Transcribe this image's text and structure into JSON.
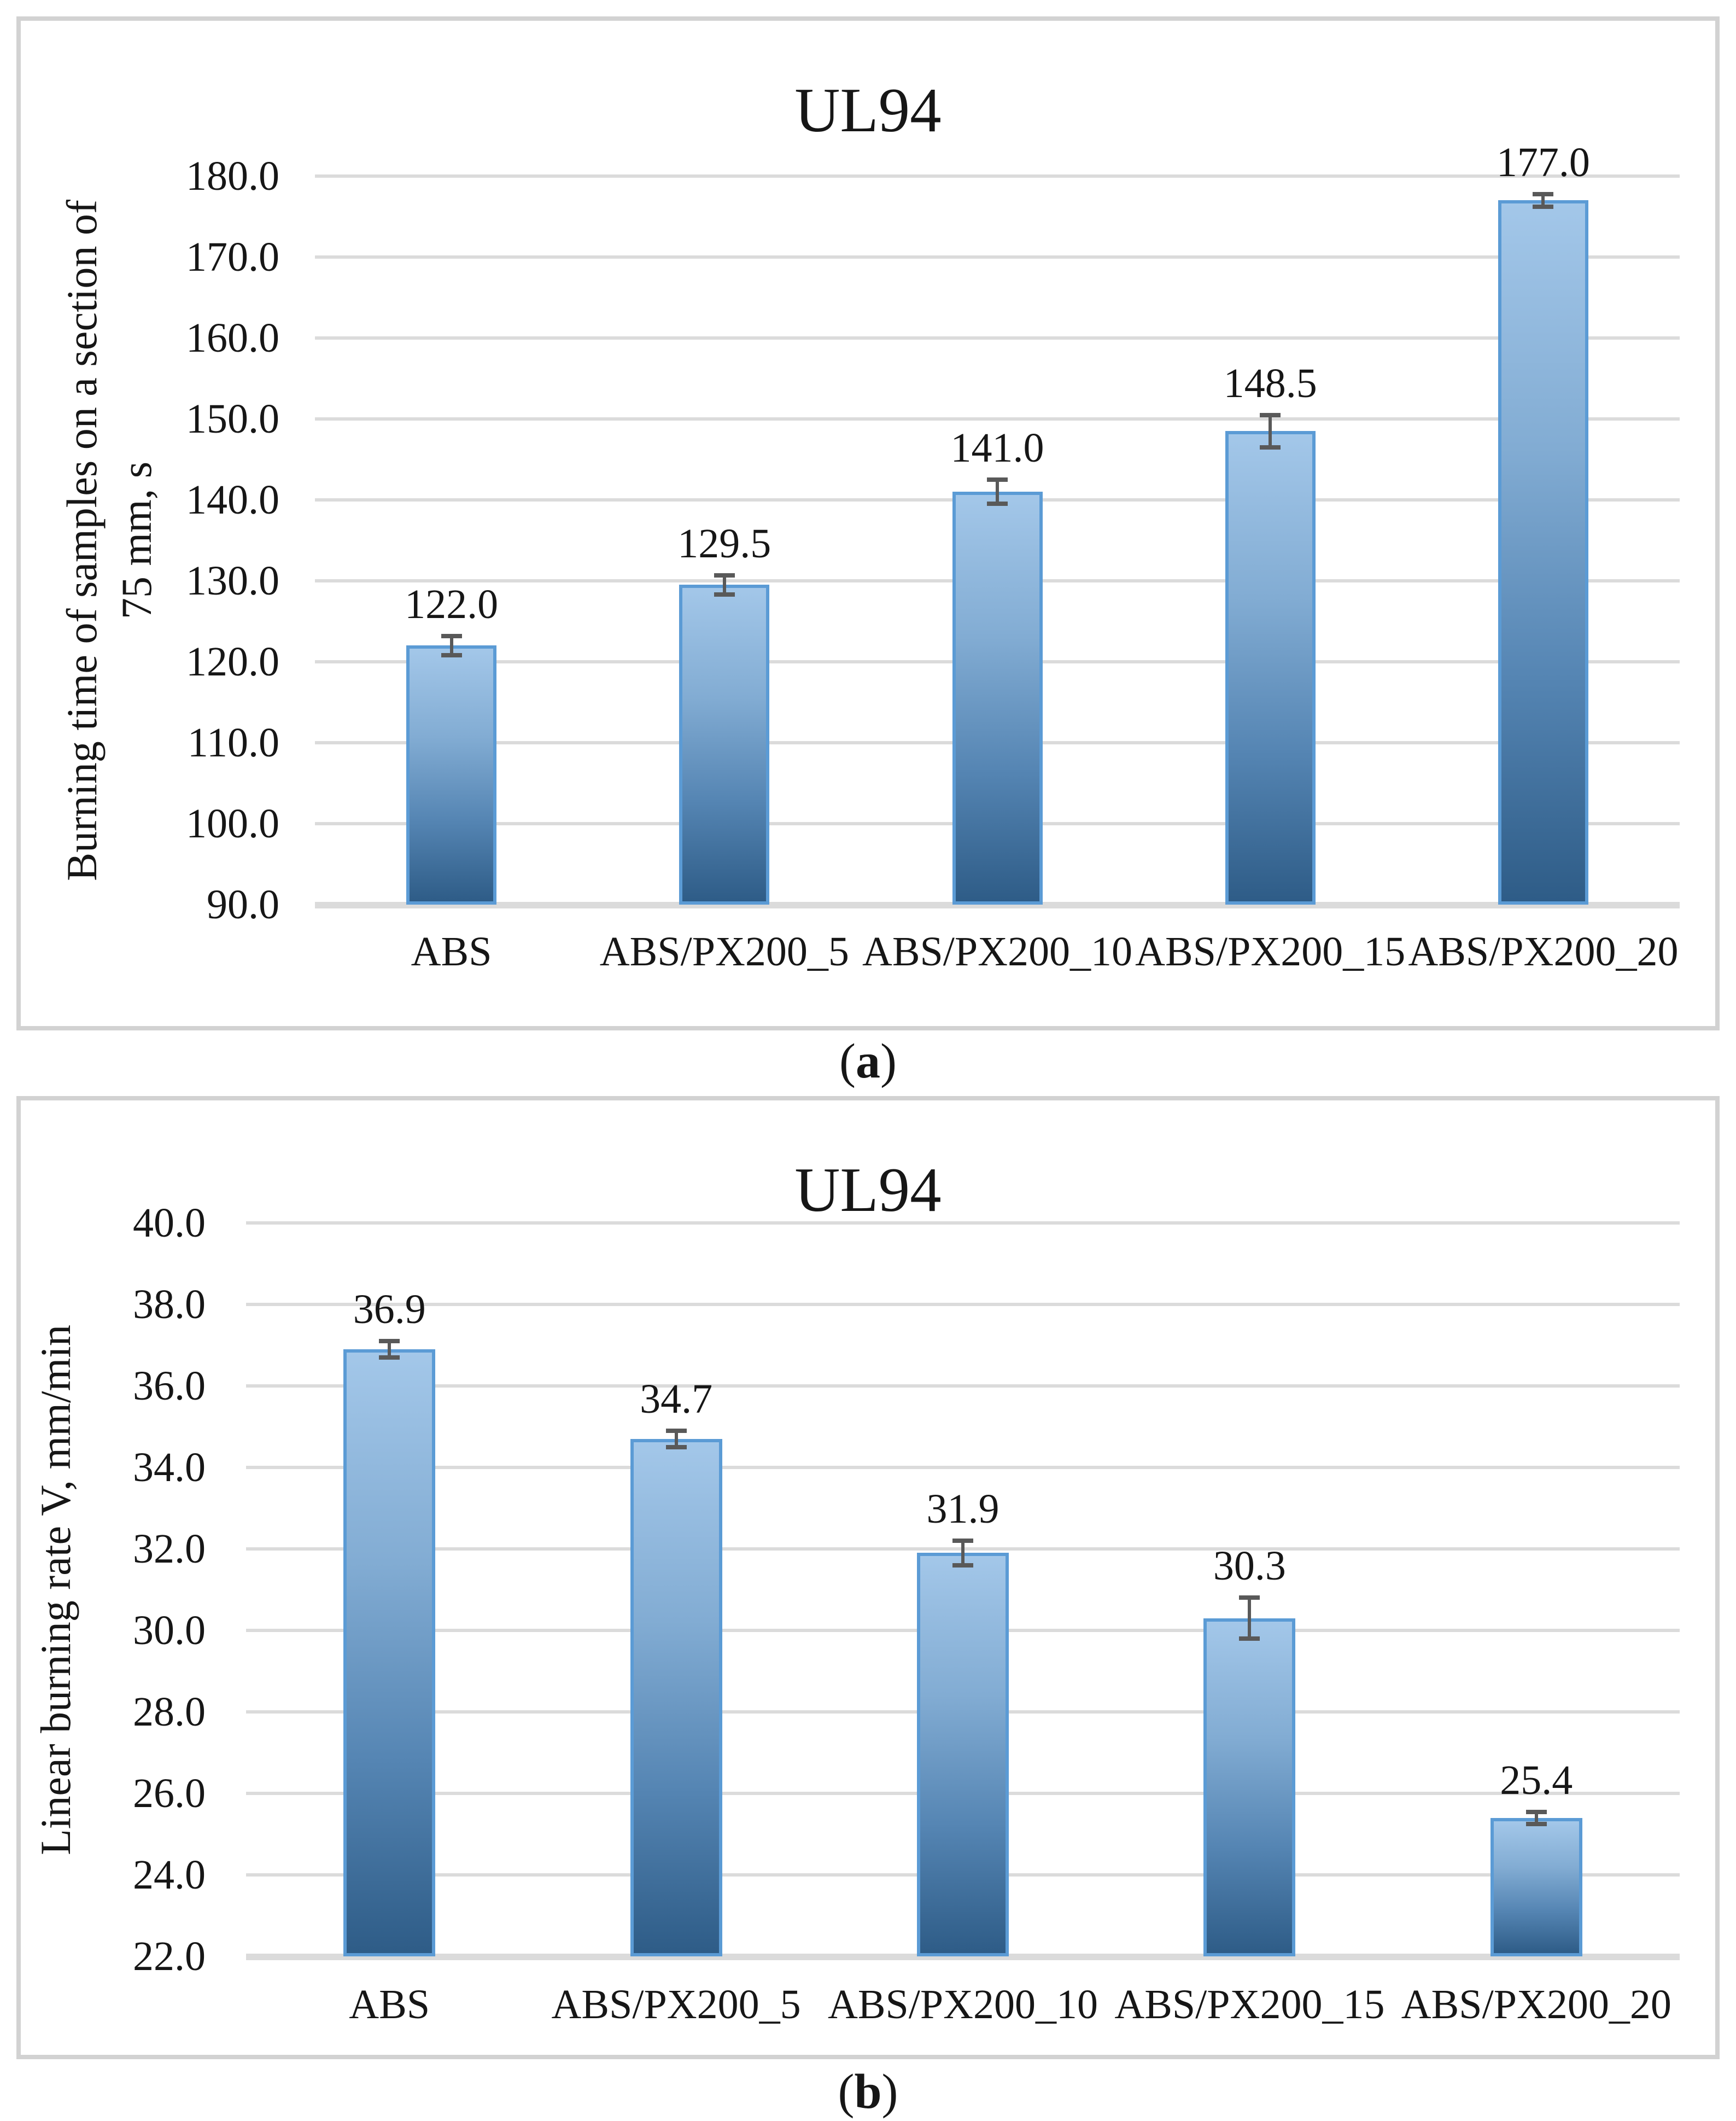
{
  "figure": {
    "captions": {
      "a": {
        "open": "(",
        "letter": "a",
        "close": ")"
      },
      "b": {
        "open": "(",
        "letter": "b",
        "close": ")"
      }
    },
    "colors": {
      "text": "#161616",
      "gridline": "#DBDBDB",
      "axis_line": "#DBDBDB",
      "panel_border": "#D2D2D2",
      "bar_border": "#5B9BD5",
      "bar_fill_top": "#A3C7E9",
      "bar_fill_mid1": "#82ACD3",
      "bar_fill_mid2": "#5585B3",
      "bar_fill_bottom": "#2E5C87",
      "error_bar": "#595959"
    }
  },
  "chart_data": [
    {
      "id": "a",
      "type": "bar",
      "title": "UL94",
      "ylabel": "Burning time of samples on a section of\n75 mm, s",
      "xlabel": "",
      "categories": [
        "ABS",
        "ABS/PX200_5",
        "ABS/PX200_10",
        "ABS/PX200_15",
        "ABS/PX200_20"
      ],
      "values": [
        122.0,
        129.5,
        141.0,
        148.5,
        177.0
      ],
      "value_labels": [
        "122.0",
        "129.5",
        "141.0",
        "148.5",
        "177.0"
      ],
      "errors": [
        1.2,
        1.2,
        1.5,
        2.0,
        0.8
      ],
      "ylim": [
        90,
        180
      ],
      "ystep": 10,
      "yticks": [
        "90.0",
        "100.0",
        "110.0",
        "120.0",
        "130.0",
        "140.0",
        "150.0",
        "160.0",
        "170.0",
        "180.0"
      ],
      "grid": true,
      "legend_position": "none"
    },
    {
      "id": "b",
      "type": "bar",
      "title": "UL94",
      "ylabel": "Linear burning rate V, mm/min",
      "xlabel": "",
      "categories": [
        "ABS",
        "ABS/PX200_5",
        "ABS/PX200_10",
        "ABS/PX200_15",
        "ABS/PX200_20"
      ],
      "values": [
        36.9,
        34.7,
        31.9,
        30.3,
        25.4
      ],
      "value_labels": [
        "36.9",
        "34.7",
        "31.9",
        "30.3",
        "25.4"
      ],
      "errors": [
        0.2,
        0.2,
        0.3,
        0.5,
        0.15
      ],
      "ylim": [
        22,
        40
      ],
      "ystep": 2,
      "yticks": [
        "22.0",
        "24.0",
        "26.0",
        "28.0",
        "30.0",
        "32.0",
        "34.0",
        "36.0",
        "38.0",
        "40.0"
      ],
      "grid": true,
      "legend_position": "none"
    }
  ]
}
